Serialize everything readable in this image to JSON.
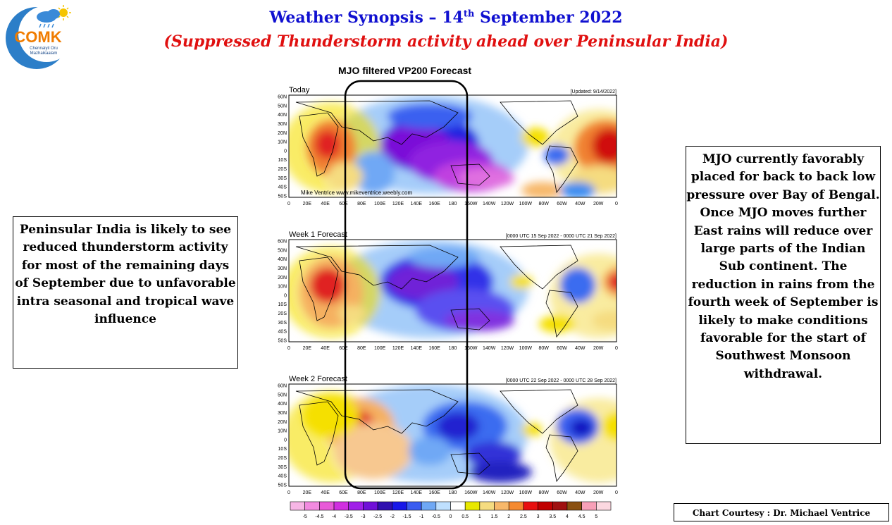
{
  "header": {
    "title_prefix": "Weather Synopsis – 14",
    "title_sup": "th",
    "title_suffix": " September 2022",
    "subtitle": "(Suppressed Thunderstorm activity ahead over Peninsular India)"
  },
  "logo": {
    "text": "COMK",
    "tagline_1": "Chennaiyil Oru",
    "tagline_2": "Mazhaikaalam"
  },
  "chart": {
    "title": "MJO filtered VP200 Forecast",
    "panels": [
      {
        "label": "Today",
        "right_label": "[Updated: 9/14/2022]",
        "credit": "Mike Ventrice www.mikeventrice.weebly.com"
      },
      {
        "label": "Week 1 Forecast",
        "right_label": "[0000 UTC 15 Sep 2022 - 0000 UTC 21 Sep 2022]"
      },
      {
        "label": "Week 2 Forecast",
        "right_label": "[0000 UTC 22 Sep 2022 - 0000 UTC 28 Sep 2022]"
      }
    ],
    "lat_labels": [
      "60N",
      "50N",
      "40N",
      "30N",
      "20N",
      "10N",
      "0",
      "10S",
      "20S",
      "30S",
      "40S",
      "50S"
    ],
    "lon_labels": [
      "0",
      "20E",
      "40E",
      "60E",
      "80E",
      "100E",
      "120E",
      "140E",
      "160E",
      "180",
      "160W",
      "140W",
      "120W",
      "100W",
      "80W",
      "60W",
      "40W",
      "20W",
      "0"
    ],
    "colorbar": {
      "labels": [
        "-5",
        "-4.5",
        "-4",
        "-3.5",
        "-3",
        "-2.5",
        "-2",
        "-1.5",
        "-1",
        "-0.5",
        "0",
        "0.5",
        "1",
        "1.5",
        "2",
        "2.5",
        "3",
        "3.5",
        "4",
        "4.5",
        "5"
      ],
      "colors": [
        "#f7b6e6",
        "#f28ae0",
        "#e85ad8",
        "#d02ee0",
        "#a020e8",
        "#7010d8",
        "#3010b0",
        "#1818e8",
        "#3a5cf0",
        "#6fa8f5",
        "#bfe0ff",
        "#ffffff",
        "#e8e800",
        "#f5dc80",
        "#f7b86a",
        "#f58a30",
        "#e81010",
        "#c00000",
        "#a01010",
        "#8a5010",
        "#f8a0b8",
        "#fcd8e0"
      ]
    },
    "highlight": "MJO region 60E-180"
  },
  "left_note": "Peninsular India is likely to see reduced thunderstorm activity for most of the remaining days of September due to unfavorable intra seasonal and tropical wave influence",
  "right_note": "MJO currently favorably placed for back to back low pressure over Bay of Bengal. Once MJO moves further East rains will reduce over large parts of the Indian Sub continent. The reduction in rains from the fourth week of September is likely to make conditions favorable for the start of Southwest Monsoon withdrawal.",
  "courtesy": "Chart Courtesy : Dr. Michael Ventrice"
}
